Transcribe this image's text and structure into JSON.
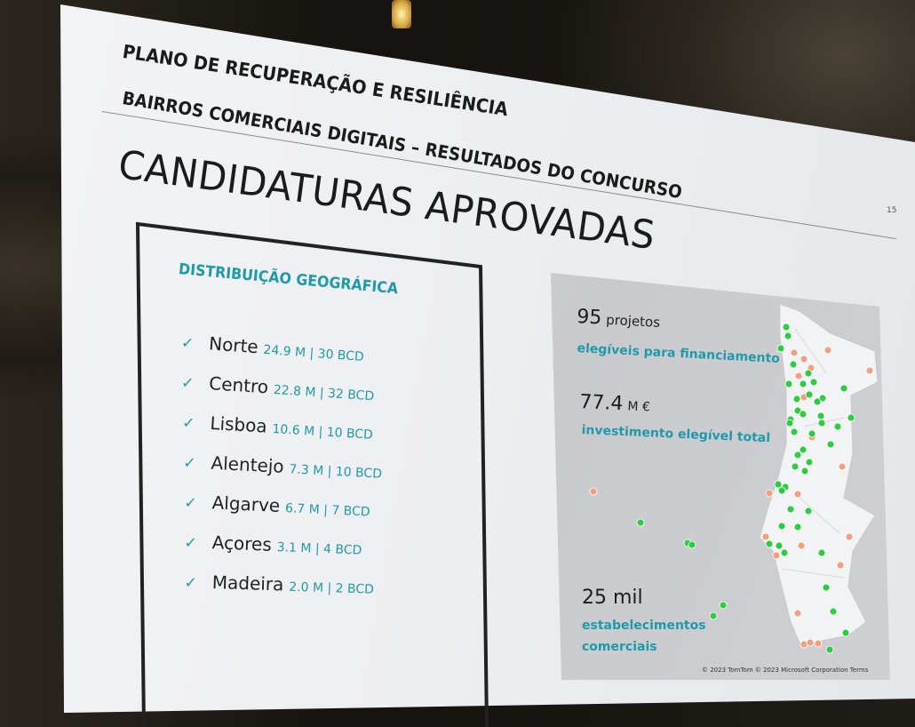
{
  "header": {
    "line1": "PLANO DE RECUPERAÇÃO E RESILIÊNCIA",
    "line2": "BAIRROS COMERCIAIS DIGITAIS – RESULTADOS DO CONCURSO",
    "title": "CANDIDATURAS APROVADAS",
    "page_number": "15"
  },
  "distribution": {
    "heading": "DISTRIBUIÇÃO GEOGRÁFICA",
    "check_icon": "checkmark-icon",
    "items": [
      {
        "region": "Norte",
        "value": "24.9 M | 30 BCD"
      },
      {
        "region": "Centro",
        "value": "22.8 M | 32 BCD"
      },
      {
        "region": "Lisboa",
        "value": "10.6 M | 10 BCD"
      },
      {
        "region": "Alentejo",
        "value": "7.3 M | 10 BCD"
      },
      {
        "region": "Algarve",
        "value": "6.7 M | 7 BCD"
      },
      {
        "region": "Açores",
        "value": "3.1 M | 4 BCD"
      },
      {
        "region": "Madeira",
        "value": "2.0 M | 2 BCD"
      }
    ]
  },
  "stats": {
    "projects_number": "95",
    "projects_unit": "projetos",
    "projects_label": "elegíveis para financiamento",
    "investment_number": "77.4",
    "investment_unit": "M €",
    "investment_label": "investimento elegível total",
    "establishments_number": "25 mil",
    "establishments_label_1": "estabelecimentos",
    "establishments_label_2": "comerciais"
  },
  "map": {
    "copyright": "© 2023 TomTom © 2023 Microsoft Corporation Terms",
    "colors": {
      "approved": "#2ecc40",
      "other": "#f0a080",
      "accent": "#1e9aa8"
    }
  }
}
